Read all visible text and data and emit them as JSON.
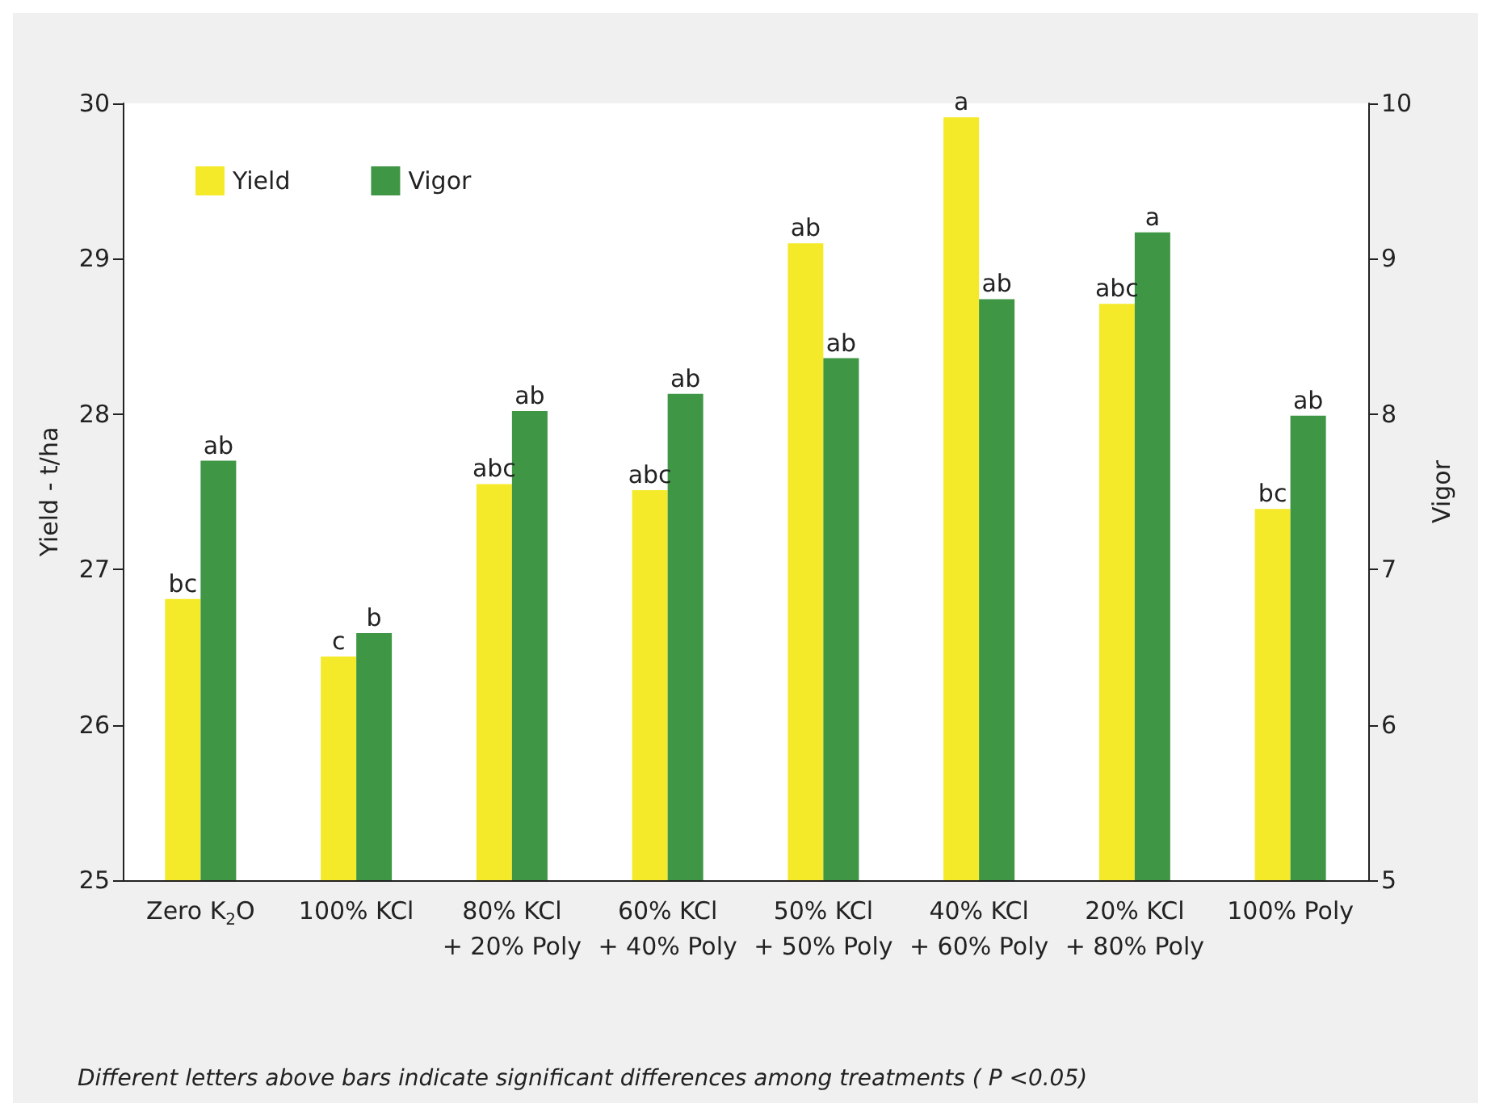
{
  "chart_data": {
    "type": "bar",
    "categories": [
      "Zero K$_{2}$O",
      "100% KCl",
      "80% KCl\n+ 20% Poly",
      "60% KCl\n+ 40% Poly",
      "50% KCl\n+ 50% Poly",
      "40% KCl\n+ 60% Poly",
      "20% KCl\n+ 80% Poly",
      "100% Poly"
    ],
    "series": [
      {
        "name": "Yield",
        "color": "#f5ea2a",
        "values": [
          26.81,
          26.44,
          27.55,
          27.51,
          29.1,
          29.91,
          28.71,
          27.39
        ],
        "value_labels": [
          "bc",
          "c",
          "abc",
          "abc",
          "ab",
          "a",
          "abc",
          "bc"
        ]
      },
      {
        "name": "Vigor",
        "color": "#3f9645",
        "axis": "y2",
        "values": [
          7.7,
          6.59,
          8.02,
          8.13,
          8.36,
          8.74,
          9.17,
          7.99
        ],
        "value_labels": [
          "ab",
          "b",
          "ab",
          "ab",
          "ab",
          "ab",
          "a",
          "ab"
        ]
      }
    ],
    "ylabel": "Yield - t/ha",
    "y2label": "Vigor",
    "ylim": [
      25,
      30
    ],
    "yticks": [
      25,
      26,
      27,
      28,
      29,
      30
    ],
    "y2lim": [
      5,
      10
    ],
    "y2ticks": [
      5,
      6,
      7,
      8,
      9,
      10
    ],
    "legend": "top left",
    "grid": false,
    "annotations": [
      "Different letters above bars indicate significant differences among treatments ( P <0.05)"
    ]
  }
}
